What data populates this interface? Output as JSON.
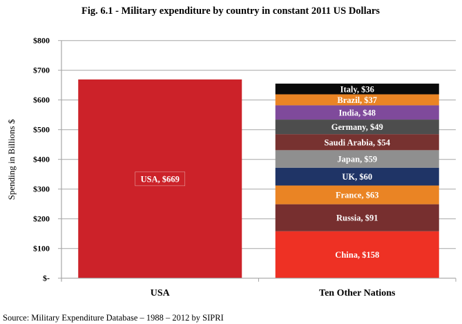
{
  "chart_data": {
    "type": "bar",
    "stacked": true,
    "title": "Fig. 6.1 - Military expenditure by country in constant 2011 US Dollars",
    "ylabel": "Spending  in Billions $",
    "xlabel": "",
    "ylim": [
      0,
      800
    ],
    "yticks": [
      0,
      100,
      200,
      300,
      400,
      500,
      600,
      700,
      800
    ],
    "ytick_labels": [
      "$-",
      "$100",
      "$200",
      "$300",
      "$400",
      "$500",
      "$600",
      "$700",
      "$800"
    ],
    "grid": true,
    "legend": "none",
    "categories": [
      "USA",
      "Ten Other Nations"
    ],
    "bars": [
      {
        "category": "USA",
        "segments": [
          {
            "name": "USA",
            "value": 669,
            "label": "USA,  $669",
            "color": "#cc2229"
          }
        ]
      },
      {
        "category": "Ten Other Nations",
        "segments": [
          {
            "name": "China",
            "value": 158,
            "label": "China,  $158",
            "color": "#ee3124"
          },
          {
            "name": "Russia",
            "value": 91,
            "label": "Russia,  $91",
            "color": "#772f2f"
          },
          {
            "name": "France",
            "value": 63,
            "label": "France,  $63",
            "color": "#ea8424"
          },
          {
            "name": "UK",
            "value": 60,
            "label": "UK,  $60",
            "color": "#1f3466"
          },
          {
            "name": "Japan",
            "value": 59,
            "label": "Japan,  $59",
            "color": "#8f8f8f"
          },
          {
            "name": "Saudi Arabia",
            "value": 54,
            "label": "Saudi Arabia,  $54",
            "color": "#773230"
          },
          {
            "name": "Germany",
            "value": 49,
            "label": "Germany,  $49",
            "color": "#4d4d4d"
          },
          {
            "name": "India",
            "value": 48,
            "label": "India,  $48",
            "color": "#7f4a9b"
          },
          {
            "name": "Brazil",
            "value": 37,
            "label": "Brazil,  $37",
            "color": "#ea8424"
          },
          {
            "name": "Italy",
            "value": 36,
            "label": "Italy,  $36",
            "color": "#0a0a0a"
          }
        ]
      }
    ]
  },
  "source": "Source: Military Expenditure Database – 1988 – 2012 by SIPRI"
}
